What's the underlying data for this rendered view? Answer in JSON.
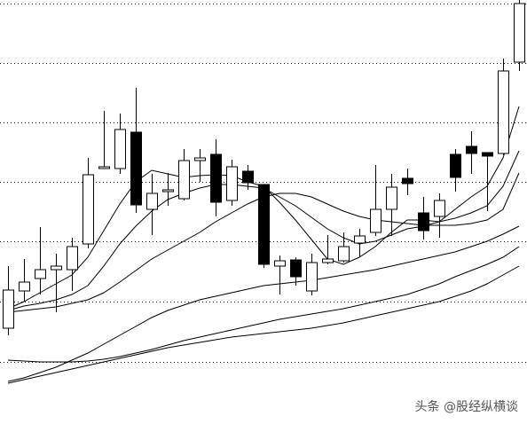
{
  "chart_data": {
    "type": "candlestick",
    "watermark": "头条 @股经纵横谈",
    "categories": [
      null,
      null,
      null,
      null,
      null,
      null,
      null,
      null,
      null,
      null,
      null,
      null,
      null,
      null,
      null,
      null,
      null,
      null,
      null,
      null,
      null,
      null,
      null,
      null,
      null,
      null,
      null,
      null,
      null,
      null,
      null,
      null,
      null
    ],
    "open": [
      108,
      150,
      164,
      174,
      174,
      203,
      288,
      288,
      329,
      242,
      262,
      254,
      297,
      304,
      252,
      285,
      270,
      178,
      185,
      150,
      182,
      184,
      204,
      216,
      242,
      277,
      238,
      234,
      304,
      313,
      306,
      305,
      408
    ],
    "high": [
      178,
      186,
      222,
      192,
      210,
      300,
      353,
      350,
      379,
      282,
      283,
      310,
      310,
      321,
      298,
      292,
      270,
      190,
      188,
      192,
      213,
      216,
      220,
      292,
      282,
      288,
      256,
      260,
      310,
      330,
      306,
      412,
      478
    ],
    "low": [
      100,
      138,
      146,
      126,
      150,
      198,
      288,
      282,
      238,
      213,
      246,
      252,
      273,
      234,
      246,
      264,
      176,
      146,
      156,
      145,
      180,
      182,
      188,
      212,
      212,
      258,
      208,
      210,
      262,
      282,
      240,
      303,
      398
    ],
    "close": [
      151,
      160,
      174,
      178,
      200,
      281,
      290,
      332,
      247,
      260,
      264,
      297,
      300,
      250,
      290,
      272,
      180,
      184,
      166,
      182,
      186,
      200,
      212,
      242,
      267,
      271,
      218,
      252,
      278,
      305,
      302,
      398,
      474
    ],
    "up_color": "#ffffff",
    "down_color": "#000000",
    "edge_color": "#000000",
    "series": [
      {
        "color": "#000000",
        "values": [
          130,
          138,
          148,
          158,
          168,
          188,
          218,
          248,
          273,
          286,
          282,
          278,
          280,
          281,
          280,
          273,
          268,
          250,
          230,
          208,
          186,
          180,
          188,
          200,
          216,
          230,
          230,
          228,
          242,
          256,
          268,
          300,
          358
        ]
      },
      {
        "color": "#000000",
        "values": [
          128,
          133,
          136,
          140,
          146,
          156,
          178,
          203,
          223,
          240,
          253,
          260,
          266,
          270,
          270,
          268,
          266,
          256,
          246,
          233,
          220,
          210,
          203,
          206,
          213,
          220,
          223,
          228,
          232,
          238,
          246,
          268,
          308
        ]
      },
      {
        "color": "#000000",
        "values": [
          126,
          128,
          130,
          132,
          136,
          140,
          148,
          160,
          173,
          186,
          196,
          206,
          216,
          228,
          238,
          248,
          256,
          260,
          260,
          256,
          248,
          240,
          234,
          230,
          228,
          226,
          224,
          224,
          224,
          226,
          230,
          242,
          283
        ]
      },
      {
        "color": "#000000",
        "values": [
          48,
          52,
          58,
          64,
          72,
          80,
          90,
          100,
          110,
          120,
          128,
          134,
          140,
          144,
          148,
          152,
          156,
          158,
          160,
          162,
          165,
          168,
          171,
          174,
          178,
          182,
          186,
          190,
          194,
          200,
          206,
          214,
          223
        ]
      },
      {
        "color": "#000000",
        "values": [
          72,
          71,
          70,
          70,
          70,
          71,
          73,
          76,
          80,
          84,
          89,
          94,
          98,
          102,
          106,
          110,
          114,
          118,
          121,
          124,
          127,
          130,
          134,
          138,
          142,
          146,
          152,
          158,
          166,
          173,
          180,
          188,
          200
        ]
      },
      {
        "color": "#000000",
        "values": [
          46,
          50,
          54,
          58,
          62,
          66,
          70,
          74,
          78,
          82,
          86,
          89,
          92,
          95,
          98,
          100,
          102,
          104,
          106,
          108,
          111,
          114,
          118,
          122,
          126,
          130,
          134,
          138,
          144,
          150,
          158,
          168,
          178
        ]
      }
    ],
    "ylim": [
      0,
      478
    ],
    "yticks": [
      70,
      138,
      206,
      273,
      340,
      407,
      474
    ],
    "grid": true
  }
}
